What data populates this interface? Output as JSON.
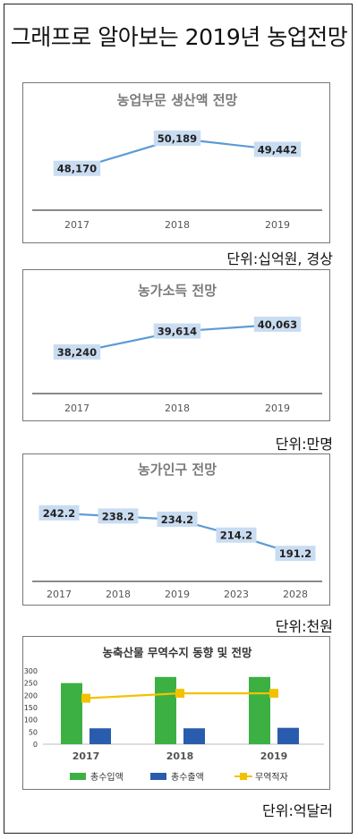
{
  "page_title": "그래프로 알아보는 2019년 농업전망",
  "units": {
    "production": "단위:십억원, 경상",
    "income": "단위:만명",
    "population": "단위:천원",
    "trade": "단위:억달러"
  },
  "chart_data": [
    {
      "type": "line",
      "title": "농업부문 생산액 전망",
      "categories": [
        "2017",
        "2018",
        "2019"
      ],
      "values": [
        48170,
        50189,
        49442
      ],
      "labels": [
        "48,170",
        "50,189",
        "49,442"
      ],
      "ylim": [
        46000,
        51500
      ],
      "grid": false,
      "color": "#5b9bd5"
    },
    {
      "type": "line",
      "title": "농가소득 전망",
      "categories": [
        "2017",
        "2018",
        "2019"
      ],
      "values": [
        38240,
        39614,
        40063
      ],
      "labels": [
        "38,240",
        "39,614",
        "40,063"
      ],
      "ylim": [
        36000,
        41000
      ],
      "grid": false,
      "color": "#5b9bd5"
    },
    {
      "type": "line",
      "title": "농가인구 전망",
      "categories": [
        "2017",
        "2018",
        "2019",
        "2023",
        "2028"
      ],
      "values": [
        242.2,
        238.2,
        234.2,
        214.2,
        191.2
      ],
      "labels": [
        "242.2",
        "238.2",
        "234.2",
        "214.2",
        "191.2"
      ],
      "ylim": [
        170,
        260
      ],
      "grid": false,
      "color": "#5b9bd5"
    },
    {
      "type": "bar",
      "title": "농축산물 무역수지 동향 및 전망",
      "categories": [
        "2017",
        "2018",
        "2019"
      ],
      "ylim": [
        0,
        300
      ],
      "yticks": [
        "0",
        "50",
        "100",
        "150",
        "200",
        "250",
        "300"
      ],
      "legend_position": "bottom",
      "series": [
        {
          "name": "총수입액",
          "type": "bar",
          "values": [
            250,
            275,
            275
          ],
          "color": "#3cb043"
        },
        {
          "name": "총수출액",
          "type": "bar",
          "values": [
            65,
            65,
            67
          ],
          "color": "#2a5cad"
        },
        {
          "name": "무역적자",
          "type": "line",
          "values": [
            188,
            208,
            208
          ],
          "color": "#f2c200"
        }
      ]
    }
  ]
}
